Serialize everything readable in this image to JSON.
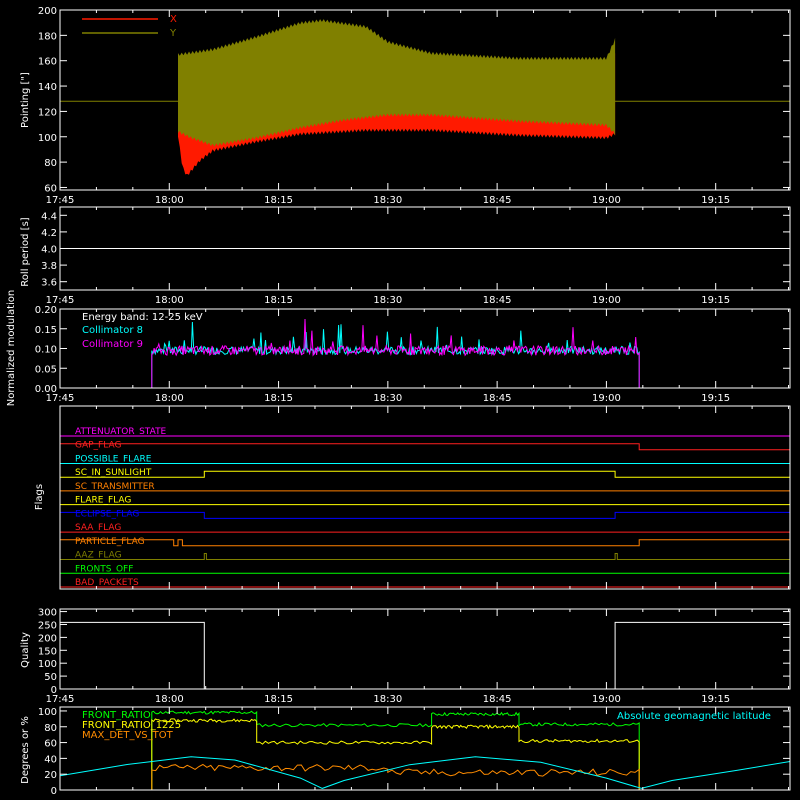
{
  "chart_data": [
    {
      "id": "pointing",
      "type": "line",
      "ylabel": "Pointing [\"]",
      "ylim": [
        58,
        200
      ],
      "yticks": [
        60,
        80,
        100,
        120,
        140,
        160,
        180,
        200
      ],
      "xticks": [
        "17:45",
        "18:00",
        "18:15",
        "18:30",
        "18:45",
        "19:00",
        "19:15"
      ],
      "show_xtick_labels": true,
      "legend": [
        {
          "name": "X",
          "color": "#ff1a00"
        },
        {
          "name": "Y",
          "color": "#808000"
        }
      ],
      "reference_level": 128,
      "series": [
        {
          "name": "X",
          "color": "#ff1a00",
          "upper": [
            [
              18.02,
              166
            ],
            [
              18.05,
              152
            ],
            [
              18.08,
              148
            ],
            [
              18.12,
              146
            ],
            [
              18.2,
              150
            ],
            [
              18.3,
              153
            ],
            [
              18.45,
              155
            ],
            [
              18.6,
              157
            ],
            [
              18.8,
              158
            ],
            [
              19.0,
              160
            ],
            [
              19.02,
              166
            ]
          ],
          "lower": [
            [
              18.02,
              100
            ],
            [
              18.03,
              75
            ],
            [
              18.04,
              68
            ],
            [
              18.07,
              80
            ],
            [
              18.1,
              88
            ],
            [
              18.2,
              95
            ],
            [
              18.3,
              101
            ],
            [
              18.45,
              104
            ],
            [
              18.6,
              104
            ],
            [
              18.8,
              100
            ],
            [
              19.0,
              98
            ],
            [
              19.02,
              101
            ]
          ]
        },
        {
          "name": "Y",
          "color": "#808000",
          "upper": [
            [
              18.02,
              166
            ],
            [
              18.1,
              170
            ],
            [
              18.2,
              180
            ],
            [
              18.3,
              191
            ],
            [
              18.35,
              193
            ],
            [
              18.45,
              188
            ],
            [
              18.5,
              176
            ],
            [
              18.6,
              167
            ],
            [
              18.8,
              163
            ],
            [
              19.0,
              163
            ],
            [
              19.02,
              178
            ]
          ],
          "lower": [
            [
              18.02,
              103
            ],
            [
              18.05,
              98
            ],
            [
              18.1,
              92
            ],
            [
              18.2,
              98
            ],
            [
              18.3,
              106
            ],
            [
              18.4,
              112
            ],
            [
              18.5,
              116
            ],
            [
              18.6,
              116
            ],
            [
              18.8,
              111
            ],
            [
              19.0,
              108
            ],
            [
              19.02,
              101
            ]
          ]
        }
      ]
    },
    {
      "id": "roll",
      "type": "line",
      "ylabel": "Roll period [s]",
      "ylim": [
        3.5,
        4.5
      ],
      "yticks": [
        "3.6",
        "3.8",
        "4.0",
        "4.2",
        "4.4"
      ],
      "xticks": [
        "17:45",
        "18:00",
        "18:15",
        "18:30",
        "18:45",
        "19:00",
        "19:15"
      ],
      "show_xtick_labels": true,
      "series": [
        {
          "name": "roll period",
          "color": "#ffffff",
          "points": [
            [
              17.75,
              4.0
            ],
            [
              19.42,
              4.0
            ]
          ]
        }
      ]
    },
    {
      "id": "modulation",
      "type": "line",
      "ylabel": "Normalized modulation",
      "ylim": [
        0,
        0.2
      ],
      "yticks": [
        "0.00",
        "0.05",
        "0.10",
        "0.15",
        "0.20"
      ],
      "xticks": [
        "17:45",
        "18:00",
        "18:15",
        "18:30",
        "18:45",
        "19:00",
        "19:15"
      ],
      "show_xtick_labels": true,
      "annotation": "Energy band: 12-25 keV",
      "series": [
        {
          "name": "Collimator 8",
          "color": "#00ffff",
          "start": 17.96,
          "end": 19.075,
          "mean": 0.095,
          "spread": 0.01
        },
        {
          "name": "Collimator 9",
          "color": "#ff00ff",
          "start": 17.96,
          "end": 19.075,
          "mean": 0.095,
          "spread": 0.012
        }
      ]
    },
    {
      "id": "flags",
      "type": "line",
      "ylabel": "Flags",
      "xticks": [
        "17:45",
        "18:00",
        "18:15",
        "18:30",
        "18:45",
        "19:00",
        "19:15"
      ],
      "show_xtick_labels": false,
      "flags": [
        {
          "name": "ATTENUATOR_STATE",
          "color": "#ff00ff",
          "steps": []
        },
        {
          "name": "GAP_FLAG",
          "color": "#ff2020",
          "steps": [
            [
              17.96,
              1
            ],
            [
              19.075,
              0
            ]
          ],
          "initial": 1
        },
        {
          "name": "POSSIBLE_FLARE",
          "color": "#00ffff",
          "steps": []
        },
        {
          "name": "SC_IN_SUNLIGHT",
          "color": "#ffff00",
          "steps": [
            [
              18.08,
              1
            ],
            [
              19.02,
              0
            ]
          ],
          "initial": 0
        },
        {
          "name": "SC_TRANSMITTER",
          "color": "#ff8000",
          "steps": []
        },
        {
          "name": "FLARE_FLAG",
          "color": "#ffff00",
          "steps": []
        },
        {
          "name": "ECLIPSE_FLAG",
          "color": "#0000ff",
          "steps": [
            [
              18.08,
              0
            ],
            [
              19.02,
              1
            ]
          ],
          "initial": 1
        },
        {
          "name": "SAA_FLAG",
          "color": "#ff2020",
          "steps": []
        },
        {
          "name": "PARTICLE_FLAG",
          "color": "#ff8000",
          "steps": [
            [
              18.01,
              0
            ],
            [
              18.02,
              1
            ],
            [
              18.03,
              0
            ],
            [
              19.075,
              1
            ]
          ],
          "initial": 1
        },
        {
          "name": "AAZ_FLAG",
          "color": "#808000",
          "pulses": [
            [
              18.08,
              18.085
            ],
            [
              19.02,
              19.025
            ]
          ]
        },
        {
          "name": "FRONTS_OFF",
          "color": "#00ff00",
          "steps": []
        },
        {
          "name": "BAD_PACKETS",
          "color": "#ff2020",
          "steps": []
        }
      ]
    },
    {
      "id": "quality",
      "type": "line",
      "ylabel": "Quality",
      "ylim": [
        0,
        310
      ],
      "yticks": [
        "0",
        "50",
        "100",
        "150",
        "200",
        "250",
        "300"
      ],
      "xticks": [
        "17:45",
        "18:00",
        "18:15",
        "18:30",
        "18:45",
        "19:00",
        "19:15"
      ],
      "show_xtick_labels": true,
      "series": [
        {
          "name": "quality",
          "color": "#ffffff",
          "points": [
            [
              17.75,
              258
            ],
            [
              18.08,
              258
            ],
            [
              18.08,
              0
            ],
            [
              19.02,
              0
            ],
            [
              19.02,
              258
            ],
            [
              19.42,
              258
            ]
          ]
        }
      ]
    },
    {
      "id": "ratios",
      "type": "line",
      "ylabel": "Degrees or %",
      "ylim": [
        0,
        105
      ],
      "yticks": [
        "0",
        "20",
        "40",
        "60",
        "80",
        "100"
      ],
      "xticks": [
        "17:45",
        "18:00",
        "18:15",
        "18:30",
        "18:45",
        "19:00",
        "19:15"
      ],
      "show_xtick_labels": false,
      "series": [
        {
          "name": "FRONT_RATIO",
          "color": "#00ff00",
          "segments": [
            [
              17.96,
              18.2,
              98
            ],
            [
              18.2,
              18.6,
              82
            ],
            [
              18.6,
              18.8,
              96
            ],
            [
              18.8,
              19.075,
              83
            ]
          ]
        },
        {
          "name": "FRONT_RATIO_1225",
          "color": "#ffff00",
          "segments": [
            [
              17.96,
              18.2,
              88
            ],
            [
              18.2,
              18.6,
              60
            ],
            [
              18.6,
              18.8,
              80
            ],
            [
              18.8,
              19.075,
              62
            ]
          ]
        },
        {
          "name": "MAX_DET_VS_TOT",
          "color": "#ff8c00",
          "segments": [
            [
              17.96,
              18.5,
              28
            ],
            [
              18.5,
              19.075,
              22
            ]
          ]
        },
        {
          "name": "Absolute geomagnetic latitude",
          "color": "#00ffff",
          "points": [
            [
              17.75,
              18
            ],
            [
              17.9,
              32
            ],
            [
              18.05,
              42
            ],
            [
              18.15,
              38
            ],
            [
              18.3,
              15
            ],
            [
              18.35,
              2
            ],
            [
              18.4,
              12
            ],
            [
              18.55,
              32
            ],
            [
              18.7,
              42
            ],
            [
              18.85,
              35
            ],
            [
              19.0,
              15
            ],
            [
              19.08,
              2
            ],
            [
              19.15,
              12
            ],
            [
              19.3,
              25
            ],
            [
              19.42,
              36
            ]
          ]
        }
      ]
    }
  ]
}
